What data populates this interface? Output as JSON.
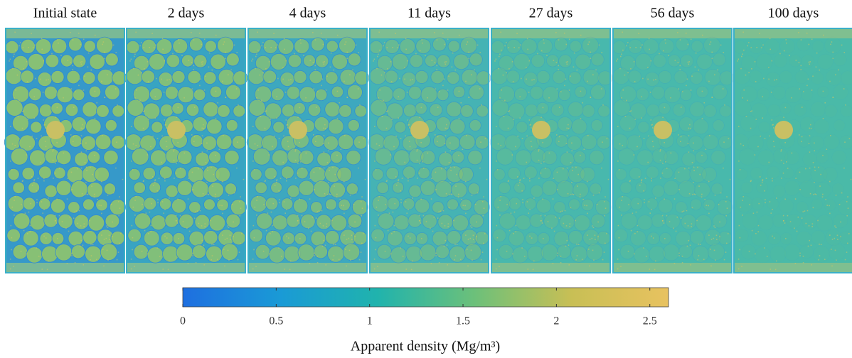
{
  "panels": [
    {
      "title": "Initial state"
    },
    {
      "title": "2 days"
    },
    {
      "title": "4 days"
    },
    {
      "title": "11 days"
    },
    {
      "title": "27 days"
    },
    {
      "title": "56 days"
    },
    {
      "title": "100 days"
    }
  ],
  "colorbar": {
    "label": "Apparent density (Mg/m³)",
    "xlim": [
      0,
      2.6
    ],
    "xticks": [
      0,
      0.5,
      1,
      1.5,
      2,
      2.5
    ],
    "colors": [
      "#1e6fe0",
      "#1a9ad6",
      "#20b3ad",
      "#6cc07a",
      "#c8bf55",
      "#e8c260"
    ]
  }
}
